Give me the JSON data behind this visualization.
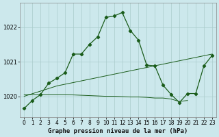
{
  "title": "Graphe pression niveau de la mer (hPa)",
  "background_color": "#cce8ec",
  "grid_color": "#aacccc",
  "line_color": "#1a5c1a",
  "xlim": [
    -0.5,
    23.5
  ],
  "ylim": [
    1019.4,
    1022.7
  ],
  "yticks": [
    1020,
    1021,
    1022
  ],
  "xticks": [
    0,
    1,
    2,
    3,
    4,
    5,
    6,
    7,
    8,
    9,
    10,
    11,
    12,
    13,
    14,
    15,
    16,
    17,
    18,
    19,
    20,
    21,
    22,
    23
  ],
  "line1_x": [
    0,
    1,
    2,
    3,
    4,
    5,
    6,
    7,
    8,
    9,
    10,
    11,
    12,
    13,
    14,
    15,
    16,
    17,
    18,
    19,
    20,
    21,
    22,
    23
  ],
  "line1_y": [
    1019.65,
    1019.88,
    1020.05,
    1020.38,
    1020.52,
    1020.68,
    1021.22,
    1021.22,
    1021.5,
    1021.72,
    1022.28,
    1022.32,
    1022.42,
    1021.9,
    1021.62,
    1020.9,
    1020.88,
    1020.32,
    1020.05,
    1019.82,
    1020.08,
    1020.08,
    1020.88,
    1021.18
  ],
  "line2_x": [
    0,
    4,
    23
  ],
  "line2_y": [
    1020.0,
    1020.3,
    1021.22
  ],
  "line3_x": [
    0,
    5,
    10,
    11,
    12,
    13,
    14,
    15,
    16,
    17,
    18,
    19,
    20
  ],
  "line3_y": [
    1020.05,
    1020.05,
    1020.0,
    1020.0,
    1019.99,
    1019.98,
    1019.98,
    1019.97,
    1019.95,
    1019.95,
    1019.92,
    1019.85,
    1019.88
  ]
}
